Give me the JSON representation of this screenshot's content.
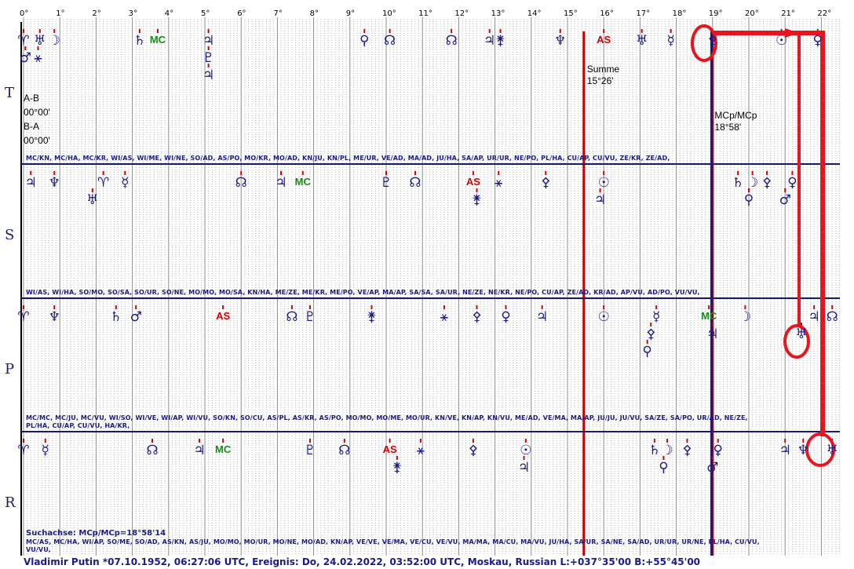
{
  "degrees": [
    "0°",
    "1°",
    "2°",
    "3°",
    "4°",
    "5°",
    "6°",
    "7°",
    "8°",
    "9°",
    "10°",
    "11°",
    "12°",
    "13°",
    "14°",
    "15°",
    "16°",
    "17°",
    "18°",
    "19°",
    "20°",
    "21°",
    "22°"
  ],
  "bands": [
    {
      "letter": "T",
      "glyphs": [
        {
          "deg": 0.0,
          "row": 0,
          "sym": "♈"
        },
        {
          "deg": 0.45,
          "row": 0,
          "sym": "♅"
        },
        {
          "deg": 0.85,
          "row": 0,
          "sym": "☽"
        },
        {
          "deg": 0.05,
          "row": 1,
          "sym": "♂"
        },
        {
          "deg": 0.4,
          "row": 1,
          "sym": "⚹"
        },
        {
          "deg": 3.2,
          "row": 0,
          "sym": "♄"
        },
        {
          "deg": 3.7,
          "row": 0,
          "sym": "MC",
          "kind": "mc"
        },
        {
          "deg": 5.1,
          "row": 0,
          "sym": "♃"
        },
        {
          "deg": 5.1,
          "row": 1,
          "sym": "♇"
        },
        {
          "deg": 5.1,
          "row": 2,
          "sym": "♃"
        },
        {
          "deg": 9.4,
          "row": 0,
          "sym": "⚲"
        },
        {
          "deg": 10.1,
          "row": 0,
          "sym": "☊"
        },
        {
          "deg": 11.8,
          "row": 0,
          "sym": "☊"
        },
        {
          "deg": 12.85,
          "row": 0,
          "sym": "♃"
        },
        {
          "deg": 13.15,
          "row": 0,
          "sym": "⚵"
        },
        {
          "deg": 14.8,
          "row": 0,
          "sym": "♆"
        },
        {
          "deg": 16.0,
          "row": 0,
          "sym": "AS",
          "kind": "as"
        },
        {
          "deg": 17.05,
          "row": 0,
          "sym": "♅"
        },
        {
          "deg": 17.85,
          "row": 0,
          "sym": "☿"
        },
        {
          "deg": 19.0,
          "row": 0,
          "sym": "⚴"
        },
        {
          "deg": 20.9,
          "row": 0,
          "sym": "☉"
        },
        {
          "deg": 21.9,
          "row": 0,
          "sym": "♀"
        }
      ],
      "info": [
        "A-B",
        "00°00'",
        "B-A",
        "00°00'"
      ],
      "notes": [
        {
          "deg": 15.45,
          "lines": [
            "Summe",
            "15°26'"
          ]
        },
        {
          "deg": 18.97,
          "lines": [
            "MCp/MCp",
            "18°58'"
          ]
        }
      ],
      "abbr": [
        "MC/KN, MC/HA, MC/KR, WI/AS, WI/ME, WI/NE, SO/AD, AS/PO, MO/KR, MO/AD, KN/JU, KN/PL, ME/UR, VE/AD, MA/AD, JU/HA, SA/AP, UR/UR, NE/PO, PL/HA, CU/AP, CU/VU, ZE/KR, ZE/AD,"
      ]
    },
    {
      "letter": "S",
      "glyphs": [
        {
          "deg": 0.2,
          "row": 0,
          "sym": "♃"
        },
        {
          "deg": 0.85,
          "row": 0,
          "sym": "♆"
        },
        {
          "deg": 2.2,
          "row": 0,
          "sym": "♈"
        },
        {
          "deg": 2.8,
          "row": 0,
          "sym": "☿"
        },
        {
          "deg": 1.9,
          "row": 1,
          "sym": "♅"
        },
        {
          "deg": 6.0,
          "row": 0,
          "sym": "☊"
        },
        {
          "deg": 7.1,
          "row": 0,
          "sym": "♃"
        },
        {
          "deg": 7.7,
          "row": 0,
          "sym": "MC",
          "kind": "mc"
        },
        {
          "deg": 10.0,
          "row": 0,
          "sym": "♇"
        },
        {
          "deg": 10.8,
          "row": 0,
          "sym": "☊"
        },
        {
          "deg": 12.4,
          "row": 0,
          "sym": "AS",
          "kind": "as"
        },
        {
          "deg": 12.5,
          "row": 1,
          "sym": "⚵"
        },
        {
          "deg": 13.1,
          "row": 0,
          "sym": "⚹"
        },
        {
          "deg": 14.4,
          "row": 0,
          "sym": "⚴"
        },
        {
          "deg": 16.0,
          "row": 0,
          "sym": "☉"
        },
        {
          "deg": 15.9,
          "row": 1,
          "sym": "♃"
        },
        {
          "deg": 19.7,
          "row": 0,
          "sym": "♄"
        },
        {
          "deg": 20.1,
          "row": 0,
          "sym": "☽"
        },
        {
          "deg": 20.0,
          "row": 1,
          "sym": "⚲"
        },
        {
          "deg": 20.5,
          "row": 0,
          "sym": "⚴"
        },
        {
          "deg": 21.2,
          "row": 0,
          "sym": "♀"
        },
        {
          "deg": 21.0,
          "row": 1,
          "sym": "♂"
        }
      ],
      "abbr": [
        "WI/AS, WI/HA, SO/MO, SO/SA, SO/UR, SO/NE, MO/MO, MO/SA, KN/HA, ME/ZE, ME/KR, ME/PO, VE/AP, MA/AP, SA/SA, SA/UR, NE/ZE, NE/KR, NE/PO, CU/AP, ZE/AD, KR/AD, AP/VU, AD/PO, VU/VU,"
      ]
    },
    {
      "letter": "P",
      "glyphs": [
        {
          "deg": 0.0,
          "row": 0,
          "sym": "♈"
        },
        {
          "deg": 0.85,
          "row": 0,
          "sym": "♆"
        },
        {
          "deg": 2.55,
          "row": 0,
          "sym": "♄"
        },
        {
          "deg": 3.1,
          "row": 0,
          "sym": "♂"
        },
        {
          "deg": 5.5,
          "row": 0,
          "sym": "AS",
          "kind": "as"
        },
        {
          "deg": 7.4,
          "row": 0,
          "sym": "☊"
        },
        {
          "deg": 7.9,
          "row": 0,
          "sym": "♇"
        },
        {
          "deg": 9.6,
          "row": 0,
          "sym": "⚵"
        },
        {
          "deg": 11.6,
          "row": 0,
          "sym": "⚹"
        },
        {
          "deg": 12.5,
          "row": 0,
          "sym": "⚴"
        },
        {
          "deg": 13.3,
          "row": 0,
          "sym": "♀"
        },
        {
          "deg": 14.3,
          "row": 0,
          "sym": "♃"
        },
        {
          "deg": 16.0,
          "row": 0,
          "sym": "☉"
        },
        {
          "deg": 17.45,
          "row": 0,
          "sym": "☿"
        },
        {
          "deg": 17.3,
          "row": 1,
          "sym": "⚴"
        },
        {
          "deg": 17.2,
          "row": 2,
          "sym": "⚲"
        },
        {
          "deg": 18.9,
          "row": 0,
          "sym": "MC",
          "kind": "mc"
        },
        {
          "deg": 19.0,
          "row": 1,
          "sym": "♃"
        },
        {
          "deg": 19.9,
          "row": 0,
          "sym": "☽"
        },
        {
          "deg": 21.8,
          "row": 0,
          "sym": "♃"
        },
        {
          "deg": 21.45,
          "row": 1,
          "sym": "♅"
        },
        {
          "deg": 22.3,
          "row": 0,
          "sym": "☊"
        }
      ],
      "abbr": [
        "MC/MC, MC/JU, MC/VU, WI/SO, WI/VE, WI/AP, WI/VU, SO/KN, SO/CU, AS/PL, AS/KR, AS/PO, MO/MO, MO/ME, MO/UR, KN/VE, KN/AP, KN/VU, ME/AD, VE/MA, MA/AP, JU/JU, JU/VU, SA/ZE, SA/PO, UR/AD, NE/ZE,",
        "PL/HA, CU/AP, CU/VU, HA/KR,"
      ]
    },
    {
      "letter": "R",
      "glyphs": [
        {
          "deg": 0.0,
          "row": 0,
          "sym": "♈"
        },
        {
          "deg": 0.6,
          "row": 0,
          "sym": "☿"
        },
        {
          "deg": 3.55,
          "row": 0,
          "sym": "☊"
        },
        {
          "deg": 4.85,
          "row": 0,
          "sym": "♃"
        },
        {
          "deg": 5.5,
          "row": 0,
          "sym": "MC",
          "kind": "mc"
        },
        {
          "deg": 7.9,
          "row": 0,
          "sym": "♇"
        },
        {
          "deg": 8.85,
          "row": 0,
          "sym": "☊"
        },
        {
          "deg": 10.1,
          "row": 0,
          "sym": "AS",
          "kind": "as"
        },
        {
          "deg": 10.3,
          "row": 1,
          "sym": "⚵"
        },
        {
          "deg": 10.95,
          "row": 0,
          "sym": "⚹"
        },
        {
          "deg": 12.4,
          "row": 0,
          "sym": "⚴"
        },
        {
          "deg": 13.85,
          "row": 0,
          "sym": "☉"
        },
        {
          "deg": 13.8,
          "row": 1,
          "sym": "♃"
        },
        {
          "deg": 17.4,
          "row": 0,
          "sym": "♄"
        },
        {
          "deg": 17.75,
          "row": 0,
          "sym": "☽"
        },
        {
          "deg": 17.65,
          "row": 1,
          "sym": "⚲"
        },
        {
          "deg": 18.3,
          "row": 0,
          "sym": "⚴"
        },
        {
          "deg": 19.15,
          "row": 0,
          "sym": "♀"
        },
        {
          "deg": 19.0,
          "row": 1,
          "sym": "♂"
        },
        {
          "deg": 21.0,
          "row": 0,
          "sym": "♃"
        },
        {
          "deg": 21.5,
          "row": 0,
          "sym": "♆"
        },
        {
          "deg": 22.3,
          "row": 0,
          "sym": "♅"
        }
      ],
      "abbr": [
        "MC/AS, MC/HA, WI/AP, SO/ME, SO/AD, AS/KN, AS/JU, MO/MO, MO/UR, MO/NE, MO/AD, KN/AP, VE/VE, VE/MA, VE/CU, VE/VU, MA/MA, MA/CU, MA/VU, JU/HA, SA/UR, SA/NE, SA/AD, UR/UR, UR/NE, PL/HA, CU/VU,",
        "VU/VU,"
      ]
    }
  ],
  "red_lines": [
    15.45,
    19.0
  ],
  "blue_line": 18.97,
  "search_axis": "Suchachse: MCp/MCp=18°58'14",
  "footer": "Vladimir Putin  *07.10.1952, 06:27:06 UTC, Ereignis: Do, 24.02.2022, 03:52:00 UTC, Moskau, Russian L:+037°35'00 B:+55°45'00",
  "colors": {
    "glyph": "#1a1a8a",
    "as": "#d40000",
    "mc": "#1a8a1a",
    "annotation": "#e8141e",
    "separator": "#1a1a6e"
  }
}
